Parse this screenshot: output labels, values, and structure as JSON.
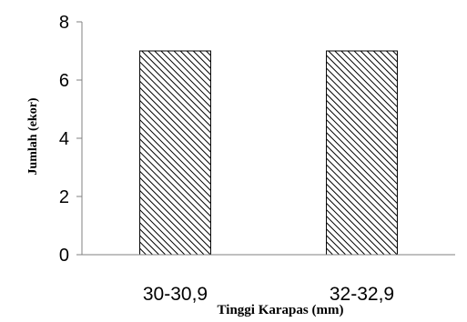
{
  "chart_data": {
    "type": "bar",
    "categories": [
      "30-30,9",
      "32-32,9"
    ],
    "values": [
      7,
      7
    ],
    "xlabel": "Tinggi Karapas (mm)",
    "ylabel": "Jumlah (ekor)",
    "ylim": [
      0,
      8
    ],
    "yticks": [
      0,
      2,
      4,
      6,
      8
    ],
    "grid": false,
    "legend": "none",
    "bar_fill": "diagonal-hatch",
    "colors": {
      "bar_stroke": "#000000",
      "hatch": "#000000",
      "axis": "#808080"
    }
  }
}
